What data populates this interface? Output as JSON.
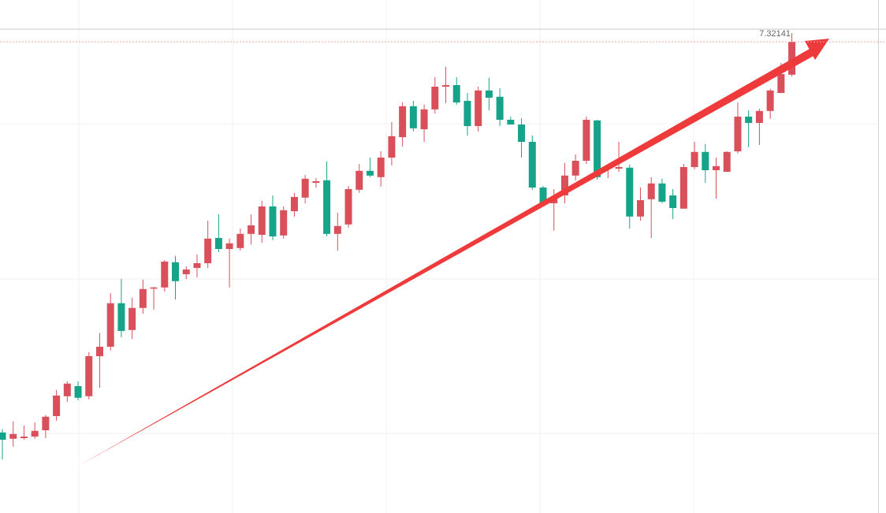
{
  "chart_data": {
    "type": "candlestick",
    "up_color": "#d9505a",
    "down_color": "#15a489",
    "ylim": [
      7.17195,
      7.3347
    ],
    "last_price": 7.32141,
    "open": [
      7.1975,
      7.1955,
      7.1957,
      7.1962,
      7.1982,
      7.2027,
      7.209,
      7.2122,
      7.209,
      7.2217,
      7.2247,
      7.2385,
      7.23,
      7.237,
      7.2432,
      7.2435,
      7.2515,
      7.2477,
      7.2497,
      7.2512,
      7.2592,
      7.2557,
      7.256,
      7.2605,
      7.2602,
      7.2692,
      7.26,
      7.2677,
      7.272,
      7.2767,
      7.2775,
      7.2605,
      7.2635,
      7.2745,
      7.2805,
      7.2785,
      7.2847,
      7.2912,
      7.301,
      7.2937,
      7.3,
      7.3072,
      7.3077,
      7.3027,
      7.2947,
      7.306,
      7.304,
      7.2967,
      7.2952,
      7.2897,
      7.2752,
      7.2702,
      7.2727,
      7.279,
      7.2837,
      7.2965,
      7.2815,
      7.2812,
      7.2815,
      7.266,
      7.2715,
      7.2765,
      7.2727,
      7.2685,
      7.2817,
      7.2865,
      7.2807,
      7.2802,
      7.2867,
      7.2977,
      7.2957,
      7.2995,
      7.3052,
      7.311
    ],
    "high": [
      7.1985,
      7.201,
      7.1997,
      7.2007,
      7.203,
      7.211,
      7.2137,
      7.2137,
      7.223,
      7.229,
      7.2417,
      7.2462,
      7.2402,
      7.246,
      7.2437,
      7.2522,
      7.2535,
      7.2502,
      7.254,
      7.2647,
      7.2667,
      7.259,
      7.2622,
      7.2667,
      7.271,
      7.2727,
      7.2692,
      7.2735,
      7.2792,
      7.2782,
      7.2835,
      7.2672,
      7.2757,
      7.2827,
      7.2847,
      7.2867,
      7.296,
      7.3022,
      7.3027,
      7.3015,
      7.3102,
      7.3135,
      7.3102,
      7.3052,
      7.3072,
      7.31,
      7.3067,
      7.2977,
      7.2972,
      7.2917,
      7.2757,
      7.2747,
      7.283,
      7.2857,
      7.2977,
      7.2967,
      7.2822,
      7.2897,
      7.2825,
      7.2752,
      7.2785,
      7.278,
      7.2747,
      7.2827,
      7.2897,
      7.289,
      7.2847,
      7.2867,
      7.3022,
      7.2997,
      7.3002,
      7.3065,
      7.3147,
      7.3242
    ],
    "low": [
      7.1889,
      7.193,
      7.1952,
      7.1955,
      7.1957,
      7.2012,
      7.2072,
      7.2077,
      7.208,
      7.2117,
      7.2235,
      7.2277,
      7.2272,
      7.2352,
      7.2365,
      7.2422,
      7.2397,
      7.2462,
      7.2467,
      7.2497,
      7.2547,
      7.2435,
      7.2552,
      7.2572,
      7.2577,
      7.2585,
      7.259,
      7.266,
      7.2702,
      7.2752,
      7.2597,
      7.2552,
      7.2625,
      7.2735,
      7.2785,
      7.2755,
      7.2822,
      7.2882,
      7.293,
      7.2897,
      7.2987,
      7.302,
      7.3015,
      7.2917,
      7.293,
      7.2997,
      7.2947,
      7.2952,
      7.2847,
      7.2745,
      7.2697,
      7.2615,
      7.2702,
      7.2775,
      7.2827,
      7.2777,
      7.2782,
      7.2802,
      7.2622,
      7.2647,
      7.2592,
      7.2702,
      7.2652,
      7.2685,
      7.281,
      7.2767,
      7.2717,
      7.2802,
      7.286,
      7.288,
      7.2887,
      7.297,
      7.3052,
      7.3105
    ],
    "close": [
      7.1952,
      7.197,
      7.1962,
      7.198,
      7.2025,
      7.2092,
      7.213,
      7.2085,
      7.2217,
      7.2247,
      7.2385,
      7.2297,
      7.237,
      7.243,
      7.2435,
      7.2517,
      7.2455,
      7.2492,
      7.2512,
      7.259,
      7.2557,
      7.2575,
      7.2605,
      7.2632,
      7.2692,
      7.2597,
      7.268,
      7.2722,
      7.278,
      7.2772,
      7.2605,
      7.263,
      7.2747,
      7.2805,
      7.279,
      7.2847,
      7.2915,
      7.301,
      7.294,
      7.3,
      7.3072,
      7.3077,
      7.3022,
      7.2947,
      7.306,
      7.3037,
      7.2967,
      7.2952,
      7.2897,
      7.2752,
      7.2702,
      7.2722,
      7.279,
      7.2837,
      7.2967,
      7.2785,
      7.282,
      7.2817,
      7.266,
      7.2712,
      7.2765,
      7.2707,
      7.2687,
      7.2817,
      7.2865,
      7.2807,
      7.282,
      7.2865,
      7.2977,
      7.2957,
      7.2995,
      7.306,
      7.3112,
      7.32141
    ]
  }
}
